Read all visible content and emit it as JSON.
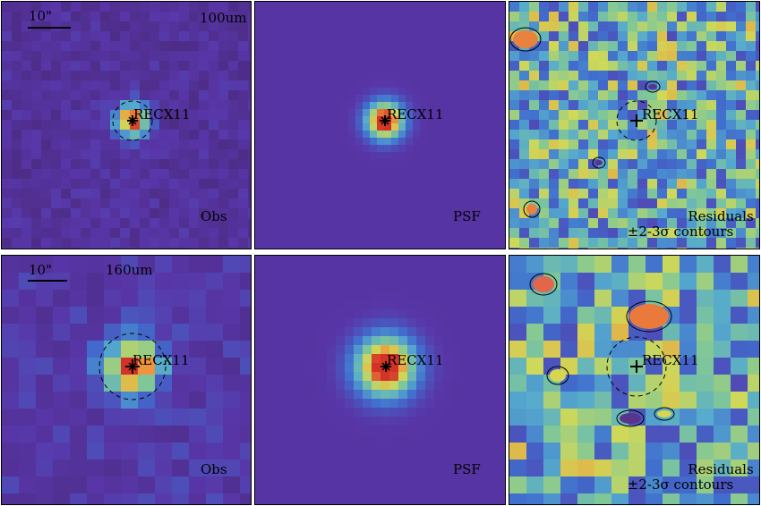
{
  "colors": {
    "background": "#ffffff",
    "border": "#000000",
    "source_peak": "#d0312a",
    "contour": "#000000"
  },
  "rows": [
    {
      "band": "100um",
      "scale_label": "10\"",
      "source_name": "RECX11",
      "obs_label": "Obs",
      "psf_label": "PSF",
      "residual_label_1": "Residuals",
      "residual_label_2": "±2-3σ contours"
    },
    {
      "band": "160um",
      "scale_label": "10\"",
      "source_name": "RECX11",
      "obs_label": "Obs",
      "psf_label": "PSF",
      "residual_label_1": "Residuals",
      "residual_label_2": "±2-3σ contours"
    }
  ]
}
